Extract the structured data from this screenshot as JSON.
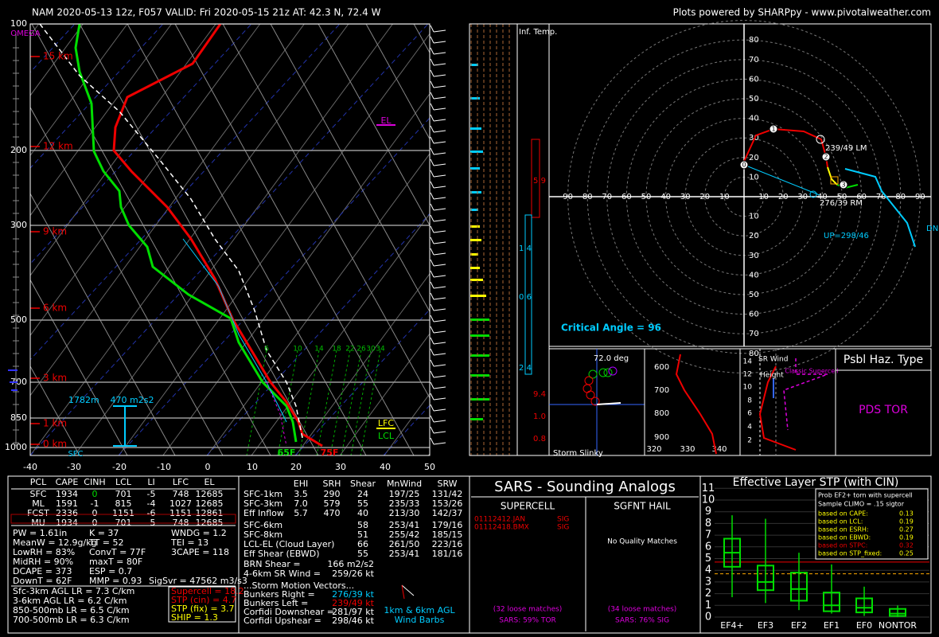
{
  "header": {
    "title": "NAM 2020-05-13 12z, F057    VALID: Fri 2020-05-15 21z    AT: 42.3 N, 72.4 W",
    "credit": "Plots powered by SHARPpy - www.pivotalweather.com"
  },
  "skewt": {
    "omega": "OMEGA",
    "pressure_labels": [
      "100",
      "200",
      "300",
      "500",
      "700",
      "850",
      "1000"
    ],
    "height_labels": [
      "15 km",
      "12 km",
      "9 km",
      "6 km",
      "3 km",
      "1 km",
      "0 km"
    ],
    "temp_labels": [
      "-40",
      "-30",
      "-20",
      "-10",
      "0",
      "10",
      "20",
      "30",
      "40",
      "50"
    ],
    "mix_labels": [
      "6",
      "10",
      "14",
      "18",
      "22",
      "26",
      "30",
      "34"
    ],
    "el": "EL",
    "lfc": "LFC",
    "lcl": "LCL",
    "sfc": "SFC",
    "esrh_height": "1782m",
    "esrh": "470 m2s2",
    "sfc_temp": "75F",
    "sfc_dewpoint": "65F"
  },
  "inflow": {
    "title": "Inf. Temp.",
    "values": [
      "5.9",
      "1.4",
      "0.6",
      "2.4",
      "9.4",
      "1.0",
      "0.8"
    ]
  },
  "hodograph": {
    "ring_labels": [
      "10",
      "20",
      "30",
      "40",
      "50",
      "60",
      "70",
      "80",
      "90"
    ],
    "point_labels": [
      "0",
      "1",
      "2",
      "3"
    ],
    "left_mover": "239/49 LM",
    "right_mover": "276/39 RM",
    "upshear": "UP=298/46",
    "downshear": "DN",
    "critical_angle": "Critical Angle = 96"
  },
  "slinky": {
    "angle": "72.0 deg",
    "title": "Storm Slinky"
  },
  "theta_e": {
    "y_labels": [
      "600",
      "700",
      "800",
      "900"
    ],
    "x_labels": [
      "320",
      "330",
      "340"
    ]
  },
  "sr_wind": {
    "title": "SR Wind",
    "height": "Height",
    "y_labels": [
      "14",
      "12",
      "10",
      "8",
      "6",
      "4",
      "2"
    ],
    "classic": "Classic Supercell"
  },
  "hazard": {
    "title": "Psbl Haz. Type",
    "value": "PDS TOR"
  },
  "parcels": {
    "headers": [
      "PCL",
      "CAPE",
      "CINH",
      "LCL",
      "LI",
      "LFC",
      "EL"
    ],
    "rows": [
      [
        "SFC",
        "1934",
        "0",
        "701",
        "-5",
        "748",
        "12685"
      ],
      [
        "ML",
        "1591",
        "-1",
        "815",
        "-4",
        "1027",
        "12685"
      ],
      [
        "FCST",
        "2336",
        "0",
        "1151",
        "-6",
        "1151",
        "12861"
      ],
      [
        "MU",
        "1934",
        "0",
        "701",
        "-5",
        "748",
        "12685"
      ]
    ]
  },
  "indices": {
    "col1": [
      "PW = 1.61in",
      "MeanW = 12.9g/kg",
      "LowRH = 83%",
      "MidRH = 90%",
      "DCAPE = 373",
      "DownT = 62F"
    ],
    "col2": [
      "K = 37",
      "TT = 52",
      "ConvT = 77F",
      "maxT = 80F",
      "ESP = 0.7",
      "MMP = 0.93"
    ],
    "col3": [
      "WNDG = 1.2",
      "TEI = 13",
      "3CAPE = 118"
    ],
    "sigsvr": "SigSvr = 47562 m3/s3"
  },
  "lapse_rates": [
    "Sfc-3km AGL LR = 7.3 C/km",
    "3-6km AGL LR = 6.2 C/km",
    "850-500mb LR = 6.5 C/km",
    "700-500mb LR = 6.3 C/km"
  ],
  "params": [
    "Supercell = 18.2",
    "STP (cin) = 4.7",
    "STP (fix) = 3.7",
    "SHIP = 1.3"
  ],
  "kinematics": {
    "headers": [
      "EHI",
      "SRH",
      "Shear",
      "MnWind",
      "SRW"
    ],
    "rows_a": [
      [
        "SFC-1km",
        "3.5",
        "290",
        "24",
        "197/25",
        "131/42"
      ],
      [
        "SFC-3km",
        "7.0",
        "579",
        "55",
        "235/33",
        "153/26"
      ],
      [
        "Eff Inflow",
        "5.7",
        "470",
        "40",
        "213/30",
        "142/37"
      ]
    ],
    "rows_b": [
      [
        "SFC-6km",
        "58",
        "253/41",
        "179/16"
      ],
      [
        "SFC-8km",
        "51",
        "255/42",
        "185/15"
      ],
      [
        "LCL-EL (Cloud Layer)",
        "66",
        "261/50",
        "223/16"
      ],
      [
        "Eff Shear (EBWD)",
        "55",
        "253/41",
        "181/16"
      ]
    ],
    "extra": [
      [
        "BRN Shear =",
        "166 m2/s2"
      ],
      [
        "4-6km SR Wind =",
        "259/26 kt"
      ]
    ],
    "motion_title": "...Storm Motion Vectors...",
    "motion": [
      [
        "Bunkers Right =",
        "276/39 kt"
      ],
      [
        "Bunkers Left =",
        "239/49 kt"
      ],
      [
        "Corfidi Downshear =",
        "281/97 kt"
      ],
      [
        "Corfidi Upshear =",
        "298/46 kt"
      ]
    ],
    "barb_note": [
      "1km & 6km AGL",
      "Wind Barbs"
    ]
  },
  "sars": {
    "title": "SARS - Sounding Analogs",
    "supercell": "SUPERCELL",
    "hail": "SGFNT HAIL",
    "matches": [
      [
        "01112412.JAN",
        "SIG"
      ],
      [
        "01112418.BMX",
        "SIG"
      ]
    ],
    "no_match": "No Quality Matches",
    "supercell_loose": "(32 loose matches)",
    "supercell_result": "SARS: 59% TOR",
    "hail_loose": "(34 loose matches)",
    "hail_result": "SARS: 76% SIG"
  },
  "stp": {
    "title": "Effective Layer STP (with CIN)",
    "y_labels": [
      "0",
      "1",
      "2",
      "3",
      "4",
      "5",
      "6",
      "7",
      "8",
      "9",
      "10",
      "11"
    ],
    "x_labels": [
      "EF4+",
      "EF3",
      "EF2",
      "EF1",
      "EF0",
      "NONTOR"
    ],
    "box_title": [
      "Prob EF2+ torn with supercell",
      "Sample CLIMO = .15 sigtor"
    ],
    "rows": [
      [
        "based on CAPE:",
        "0.13"
      ],
      [
        "based on LCL:",
        "0.19"
      ],
      [
        "based on ESRH:",
        "0.27"
      ],
      [
        "based on EBWD:",
        "0.19"
      ],
      [
        "based on STPC:",
        "0.32"
      ],
      [
        "based on STP_fixed:",
        "0.25"
      ]
    ]
  }
}
